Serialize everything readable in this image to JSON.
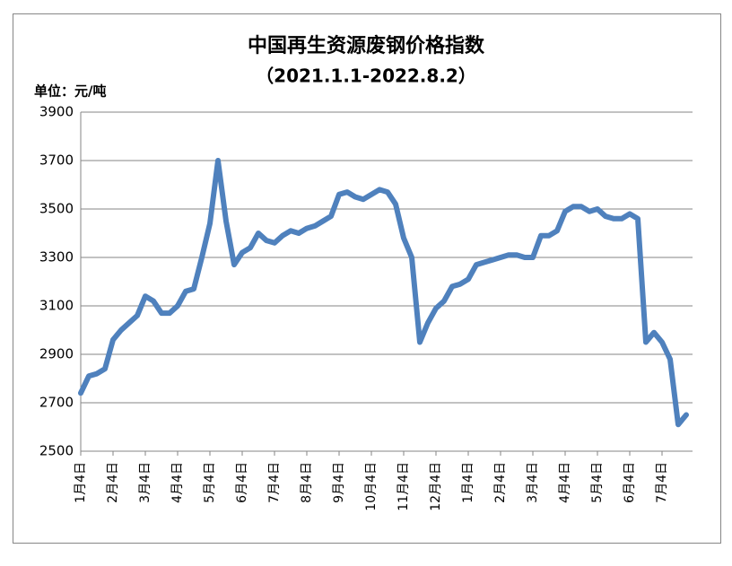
{
  "chart_data": {
    "type": "line",
    "title": "中国再生资源废钢价格指数",
    "subtitle": "（2021.1.1-2022.8.2）",
    "unit_label": "单位：元/吨",
    "categories": [
      "1月4日",
      null,
      null,
      null,
      "2月4日",
      null,
      null,
      null,
      "3月4日",
      null,
      null,
      null,
      "4月4日",
      null,
      null,
      null,
      "5月4日",
      null,
      null,
      null,
      "6月4日",
      null,
      null,
      null,
      "7月4日",
      null,
      null,
      null,
      "8月4日",
      null,
      null,
      null,
      "9月4日",
      null,
      null,
      null,
      "10月4日",
      null,
      null,
      null,
      "11月4日",
      null,
      null,
      null,
      "12月4日",
      null,
      null,
      null,
      "1月4日",
      null,
      null,
      null,
      "2月4日",
      null,
      null,
      null,
      "3月4日",
      null,
      null,
      null,
      "4月4日",
      null,
      null,
      null,
      "5月4日",
      null,
      null,
      null,
      "6月4日",
      null,
      null,
      null,
      "7月4日",
      null,
      null,
      null
    ],
    "values": [
      2740,
      2810,
      2820,
      2840,
      2960,
      3000,
      3030,
      3060,
      3140,
      3120,
      3070,
      3070,
      3100,
      3160,
      3170,
      3300,
      3440,
      3700,
      3450,
      3270,
      3320,
      3340,
      3400,
      3370,
      3360,
      3390,
      3410,
      3400,
      3420,
      3430,
      3450,
      3470,
      3560,
      3570,
      3550,
      3540,
      3560,
      3580,
      3570,
      3520,
      3380,
      3300,
      2950,
      3030,
      3090,
      3120,
      3180,
      3190,
      3210,
      3270,
      3280,
      3290,
      3300,
      3310,
      3310,
      3300,
      3300,
      3390,
      3390,
      3410,
      3490,
      3510,
      3510,
      3490,
      3500,
      3470,
      3460,
      3460,
      3480,
      3460,
      2950,
      2990,
      2950,
      2880,
      2610,
      2650
    ],
    "color": "#4f81bd",
    "ylim": [
      2500,
      3900
    ],
    "yticks": [
      2500,
      2700,
      2900,
      3100,
      3300,
      3500,
      3700,
      3900
    ],
    "grid": true
  }
}
